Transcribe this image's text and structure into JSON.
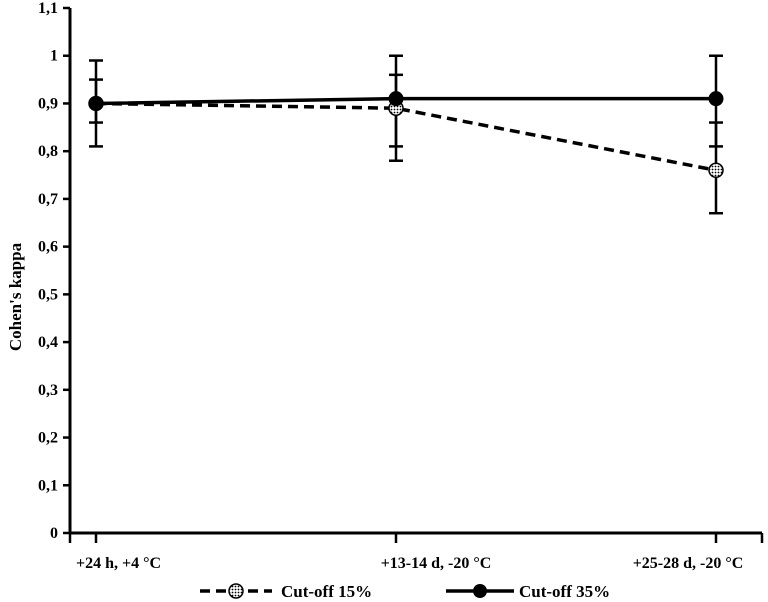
{
  "chart_data": {
    "type": "line",
    "title": "",
    "xlabel": "",
    "ylabel": "Cohen's kappa",
    "categories": [
      "+24 h, +4 °C",
      "+13-14 d, -20 °C",
      "+25-28 d, -20 °C"
    ],
    "ylim": [
      0,
      1.1
    ],
    "yticks": [
      "0",
      "0,1",
      "0,2",
      "0,3",
      "0,4",
      "0,5",
      "0,6",
      "0,7",
      "0,8",
      "0,9",
      "1",
      "1,1"
    ],
    "grid": false,
    "legend_position": "bottom",
    "series": [
      {
        "name": "Cut-off 15%",
        "values": [
          0.9,
          0.89,
          0.76
        ],
        "error_low": [
          0.86,
          0.81,
          0.67
        ],
        "error_high": [
          0.95,
          0.96,
          0.86
        ],
        "line_style": "dashed",
        "marker": "dotted-circle",
        "color": "#000000"
      },
      {
        "name": "Cut-off 35%",
        "values": [
          0.9,
          0.91,
          0.91
        ],
        "error_low": [
          0.81,
          0.78,
          0.81
        ],
        "error_high": [
          0.99,
          1.0,
          1.0
        ],
        "line_style": "solid",
        "marker": "filled-circle",
        "color": "#000000"
      }
    ]
  }
}
